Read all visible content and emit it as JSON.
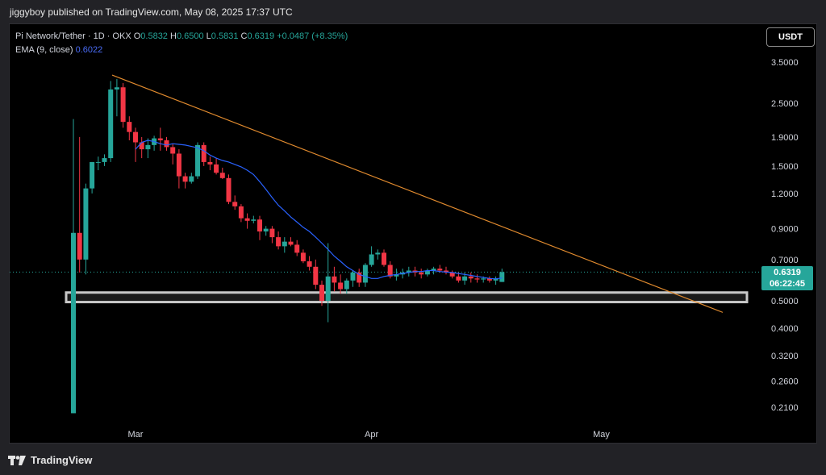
{
  "publisher_line": "jiggyboy published on TradingView.com, May 08, 2025 17:37 UTC",
  "legend": {
    "symbol": "Pi Network/Tether · 1D · OKX",
    "o_label": "O",
    "o": "0.5832",
    "h_label": "H",
    "h": "0.6500",
    "l_label": "L",
    "l": "0.5831",
    "c_label": "C",
    "c": "0.6319",
    "change": "+0.0487 (+8.35%)",
    "ema_label": "EMA (9, close)",
    "ema_value": "0.6022"
  },
  "currency_button": "USDT",
  "price_tag": {
    "price": "0.6319",
    "countdown": "06:22:45"
  },
  "brand": "TradingView",
  "colors": {
    "up": "#26a69a",
    "down": "#f23645",
    "ema": "#2962ff",
    "trendline": "#e08a2e",
    "support_zone": "#c8c8c8"
  },
  "chart_data": {
    "type": "candlestick",
    "scale": "log",
    "y_ticks": [
      "3.5000",
      "2.5000",
      "1.9000",
      "1.5000",
      "1.2000",
      "0.9000",
      "0.7000",
      "0.5000",
      "0.4000",
      "0.3200",
      "0.2600",
      "0.2100"
    ],
    "x_ticks": [
      "Mar",
      "Apr",
      "May"
    ],
    "ohlc": [
      [
        0.2,
        2.2,
        0.2,
        0.87
      ],
      [
        0.87,
        1.9,
        0.63,
        0.7
      ],
      [
        0.7,
        1.3,
        0.62,
        1.25
      ],
      [
        1.25,
        1.55,
        1.2,
        1.55
      ],
      [
        1.55,
        1.62,
        1.45,
        1.55
      ],
      [
        1.55,
        1.65,
        1.5,
        1.6
      ],
      [
        1.6,
        3.0,
        1.55,
        2.8
      ],
      [
        2.8,
        3.05,
        2.25,
        2.85
      ],
      [
        2.85,
        2.95,
        2.05,
        2.15
      ],
      [
        2.15,
        2.25,
        1.85,
        1.98
      ],
      [
        1.98,
        2.05,
        1.55,
        1.82
      ],
      [
        1.82,
        1.9,
        1.6,
        1.72
      ],
      [
        1.72,
        1.88,
        1.6,
        1.78
      ],
      [
        1.78,
        1.92,
        1.7,
        1.88
      ],
      [
        1.88,
        2.05,
        1.7,
        1.85
      ],
      [
        1.85,
        1.9,
        1.7,
        1.75
      ],
      [
        1.75,
        1.8,
        1.52,
        1.66
      ],
      [
        1.66,
        1.72,
        1.25,
        1.38
      ],
      [
        1.38,
        1.42,
        1.25,
        1.32
      ],
      [
        1.32,
        1.42,
        1.3,
        1.38
      ],
      [
        1.38,
        1.82,
        1.35,
        1.78
      ],
      [
        1.78,
        1.82,
        1.5,
        1.55
      ],
      [
        1.55,
        1.62,
        1.45,
        1.52
      ],
      [
        1.52,
        1.6,
        1.4,
        1.42
      ],
      [
        1.42,
        1.48,
        1.35,
        1.36
      ],
      [
        1.36,
        1.4,
        1.1,
        1.12
      ],
      [
        1.12,
        1.18,
        1.05,
        1.08
      ],
      [
        1.08,
        1.1,
        0.95,
        0.98
      ],
      [
        0.98,
        1.02,
        0.9,
        0.96
      ],
      [
        0.96,
        1.0,
        0.94,
        0.97
      ],
      [
        0.97,
        1.0,
        0.82,
        0.88
      ],
      [
        0.88,
        0.92,
        0.85,
        0.9
      ],
      [
        0.9,
        0.92,
        0.8,
        0.84
      ],
      [
        0.84,
        0.88,
        0.76,
        0.78
      ],
      [
        0.78,
        0.84,
        0.74,
        0.81
      ],
      [
        0.81,
        0.84,
        0.78,
        0.79
      ],
      [
        0.79,
        0.82,
        0.72,
        0.74
      ],
      [
        0.74,
        0.76,
        0.68,
        0.69
      ],
      [
        0.69,
        0.72,
        0.64,
        0.66
      ],
      [
        0.66,
        0.7,
        0.55,
        0.57
      ],
      [
        0.57,
        0.59,
        0.48,
        0.5
      ],
      [
        0.5,
        0.8,
        0.42,
        0.61
      ],
      [
        0.61,
        0.66,
        0.54,
        0.58
      ],
      [
        0.58,
        0.62,
        0.53,
        0.55
      ],
      [
        0.55,
        0.6,
        0.53,
        0.59
      ],
      [
        0.59,
        0.64,
        0.56,
        0.63
      ],
      [
        0.63,
        0.65,
        0.56,
        0.58
      ],
      [
        0.58,
        0.68,
        0.56,
        0.67
      ],
      [
        0.67,
        0.78,
        0.66,
        0.73
      ],
      [
        0.73,
        0.76,
        0.7,
        0.74
      ],
      [
        0.74,
        0.76,
        0.66,
        0.67
      ],
      [
        0.67,
        0.69,
        0.6,
        0.61
      ],
      [
        0.61,
        0.65,
        0.59,
        0.62
      ],
      [
        0.62,
        0.65,
        0.6,
        0.63
      ],
      [
        0.63,
        0.66,
        0.61,
        0.64
      ],
      [
        0.64,
        0.66,
        0.61,
        0.63
      ],
      [
        0.63,
        0.65,
        0.6,
        0.62
      ],
      [
        0.62,
        0.65,
        0.61,
        0.64
      ],
      [
        0.64,
        0.66,
        0.62,
        0.65
      ],
      [
        0.65,
        0.67,
        0.63,
        0.64
      ],
      [
        0.64,
        0.66,
        0.62,
        0.63
      ],
      [
        0.63,
        0.64,
        0.6,
        0.61
      ],
      [
        0.61,
        0.63,
        0.58,
        0.59
      ],
      [
        0.59,
        0.63,
        0.57,
        0.61
      ],
      [
        0.61,
        0.63,
        0.58,
        0.6
      ],
      [
        0.6,
        0.62,
        0.58,
        0.595
      ],
      [
        0.595,
        0.61,
        0.58,
        0.6
      ],
      [
        0.6,
        0.61,
        0.58,
        0.59
      ],
      [
        0.59,
        0.61,
        0.57,
        0.6
      ],
      [
        0.5832,
        0.65,
        0.5831,
        0.6319
      ]
    ],
    "ema9": [
      1.72,
      1.82,
      1.85,
      1.83,
      1.8,
      1.78,
      1.8,
      1.79,
      1.78,
      1.76,
      1.74,
      1.7,
      1.64,
      1.6,
      1.57,
      1.55,
      1.52,
      1.49,
      1.45,
      1.4,
      1.32,
      1.24,
      1.16,
      1.09,
      1.04,
      0.99,
      0.95,
      0.91,
      0.88,
      0.84,
      0.8,
      0.76,
      0.72,
      0.69,
      0.66,
      0.64,
      0.62,
      0.61,
      0.6,
      0.6,
      0.61,
      0.615,
      0.62,
      0.625,
      0.63,
      0.635,
      0.635,
      0.64,
      0.64,
      0.635,
      0.632,
      0.63,
      0.625,
      0.62,
      0.615,
      0.61,
      0.605,
      0.6,
      0.598,
      0.6022
    ],
    "trendline": {
      "start": 3.15,
      "end": 0.455
    },
    "support_zone": [
      0.495,
      0.535
    ],
    "last_price": 0.6319
  }
}
